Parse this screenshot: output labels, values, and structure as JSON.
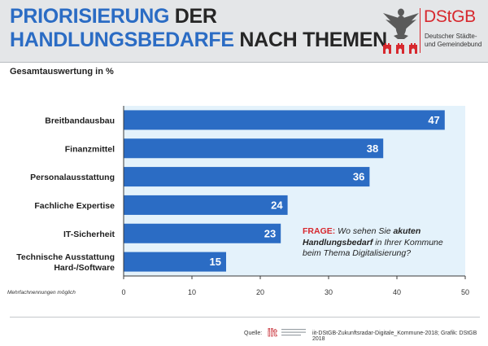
{
  "header": {
    "title_line1_accent": "PRIORISIERUNG",
    "title_line1_rest": "DER",
    "title_line2_accent": "HANDLUNGSBEDARFE",
    "title_line2_rest": "NACH THEMEN",
    "logo_text": "DStGB",
    "logo_sub_line1": "Deutscher Städte-",
    "logo_sub_line2": "und Gemeindebund",
    "accent_color": "#2b6cc4",
    "logo_color": "#d7282e"
  },
  "chart_data": {
    "type": "bar",
    "orientation": "horizontal",
    "title": "Gesamtauswertung in %",
    "categories": [
      "Breitbandausbau",
      "Finanzmittel",
      "Personalausstattung",
      "Fachliche Expertise",
      "IT-Sicherheit",
      "Technische Ausstattung Hard-/Software"
    ],
    "category_label_lines": [
      [
        "Breitbandausbau"
      ],
      [
        "Finanzmittel"
      ],
      [
        "Personalausstattung"
      ],
      [
        "Fachliche Expertise"
      ],
      [
        "IT-Sicherheit"
      ],
      [
        "Technische Ausstattung",
        "Hard-/Software"
      ]
    ],
    "values": [
      47,
      38,
      36,
      24,
      23,
      15
    ],
    "xlim": [
      0,
      50
    ],
    "xticks": [
      0,
      10,
      20,
      30,
      40,
      50
    ],
    "xlabel": "",
    "ylabel": "",
    "grid": false,
    "bar_color": "#2b6cc4",
    "plot_background": "#e4f2fb"
  },
  "note": "Mehrfachnennungen möglich",
  "question": {
    "label": "FRAGE:",
    "text_part1": " Wo sehen Sie ",
    "emphasis": "akuten Handlungsbedarf",
    "text_part2": " in Ihrer Kommune beim Thema Digitalisierung?"
  },
  "footer": {
    "source_label": "Quelle:",
    "source_text": "iit-DStGB-Zukunftsradar-Digitale_Kommune-2018; Grafik: DStGB 2018",
    "iit_logo_text": "iit"
  }
}
